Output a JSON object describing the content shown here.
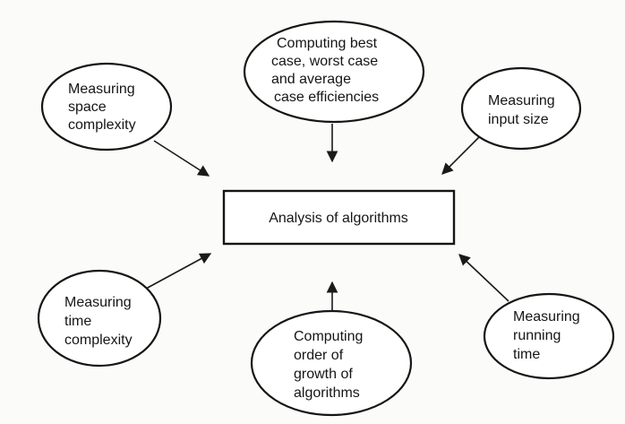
{
  "center": {
    "label": "Analysis of algorithms"
  },
  "nodes": [
    {
      "id": "space-complexity",
      "lines": [
        "Measuring",
        "space",
        "complexity"
      ]
    },
    {
      "id": "best-worst-average",
      "lines": [
        "Computing best",
        "case, worst case",
        "and average",
        "case efficiencies"
      ]
    },
    {
      "id": "input-size",
      "lines": [
        "Measuring",
        "input size"
      ]
    },
    {
      "id": "time-complexity",
      "lines": [
        "Measuring",
        "time",
        "complexity"
      ]
    },
    {
      "id": "order-of-growth",
      "lines": [
        "Computing",
        "order of",
        "growth of",
        "algorithms"
      ]
    },
    {
      "id": "running-time",
      "lines": [
        "Measuring",
        "running",
        "time"
      ]
    }
  ],
  "colors": {
    "stroke": "#151515",
    "text": "#161616",
    "background": "#fbfbf9"
  }
}
